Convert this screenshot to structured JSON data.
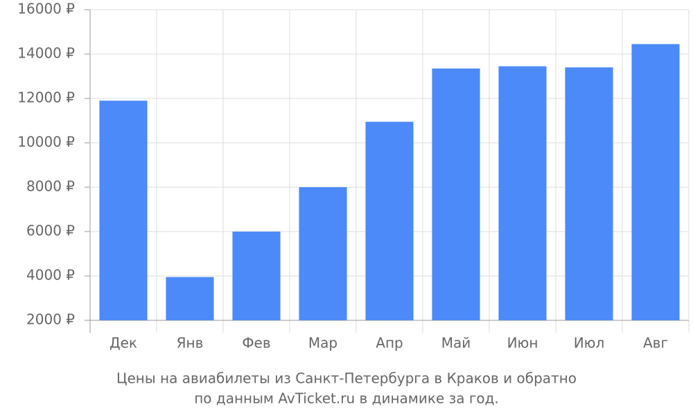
{
  "chart_data": {
    "type": "bar",
    "categories": [
      "Дек",
      "Янв",
      "Фев",
      "Мар",
      "Апр",
      "Май",
      "Июн",
      "Июл",
      "Авг"
    ],
    "values": [
      11900,
      3950,
      6000,
      8000,
      10950,
      13350,
      13450,
      13400,
      14450
    ],
    "color": "#4d8af9",
    "ylim": [
      2000,
      16000
    ],
    "yticks": [
      {
        "value": 2000,
        "label": "2000 ₽"
      },
      {
        "value": 4000,
        "label": "4000 ₽"
      },
      {
        "value": 6000,
        "label": "6000 ₽"
      },
      {
        "value": 8000,
        "label": "8000 ₽"
      },
      {
        "value": 10000,
        "label": "10000 ₽"
      },
      {
        "value": 12000,
        "label": "12000 ₽"
      },
      {
        "value": 14000,
        "label": "14000 ₽"
      },
      {
        "value": 16000,
        "label": "16000 ₽"
      }
    ],
    "grid": true,
    "caption": [
      "Цены на авиабилеты из Санкт-Петербурга в Краков и обратно",
      "по данным AvTicket.ru в динамике за год."
    ]
  }
}
